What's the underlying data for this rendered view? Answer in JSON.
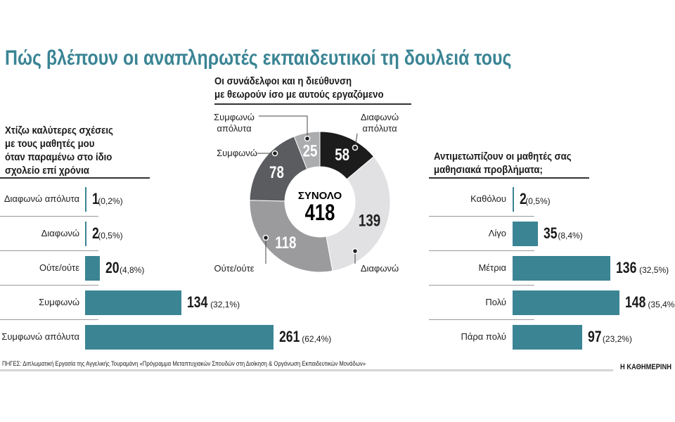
{
  "title": "Πώς βλέπουν οι αναπληρωτές εκπαιδευτικοί τη δουλειά τους",
  "colors": {
    "accent": "#3a8494",
    "bar": "#3a8494"
  },
  "chart_data": [
    {
      "type": "bar",
      "orientation": "horizontal",
      "title_lines": [
        "Χτίζω καλύτερες σχέσεις",
        "με τους μαθητές μου",
        "όταν παραμένω στο ίδιο",
        "σχολείο επί χρόνια"
      ],
      "categories": [
        "Διαφωνώ απόλυτα",
        "Διαφωνώ",
        "Ούτε/ούτε",
        "Συμφωνώ",
        "Συμφωνώ απόλυτα"
      ],
      "values": [
        1,
        2,
        20,
        134,
        261
      ],
      "percent_labels": [
        "(0,2%)",
        "(0,5%)",
        "(4,8%)",
        "(32,1%)",
        "(62,4%)"
      ]
    },
    {
      "type": "pie",
      "donut": true,
      "title_lines": [
        "Οι συνάδελφοι και η διεύθυνση",
        "με θεωρούν ίσο με αυτούς εργαζόμενο"
      ],
      "center_label": "ΣΥΝΟΛΟ",
      "total": 418,
      "slices": [
        {
          "label": "Διαφωνώ απόλυτα",
          "value": 58,
          "color": "#1c1c1c"
        },
        {
          "label": "Διαφωνώ",
          "value": 139,
          "color": "#e1e1e3"
        },
        {
          "label": "Ούτε/ούτε",
          "value": 118,
          "color": "#9b9b9e"
        },
        {
          "label": "Συμφωνώ",
          "value": 78,
          "color": "#5b5c5f"
        },
        {
          "label": "Συμφωνώ απόλυτα",
          "value": 25,
          "color": "#abacae"
        }
      ]
    },
    {
      "type": "bar",
      "orientation": "horizontal",
      "title_lines": [
        "Αντιμετωπίζουν οι μαθητές σας",
        "μαθησιακά προβλήματα;"
      ],
      "categories": [
        "Καθόλου",
        "Λίγο",
        "Μέτρια",
        "Πολύ",
        "Πάρα πολύ"
      ],
      "values": [
        2,
        35,
        136,
        148,
        97
      ],
      "percent_labels": [
        "(0,5%)",
        "(8,4%)",
        "(32,5%)",
        "(35,4%)",
        "(23,2%)"
      ]
    }
  ],
  "footer": {
    "source": "ΠΗΓΕΣ: Διπλωματική Εργασία της Αγγελικής Τουραμάνη «Πρόγραμμα Μεταπτυχιακών Σπουδών στη Διοίκηση & Οργάνωση Εκπαιδευτικών Μονάδων»",
    "brand": "Η ΚΑΘΗΜΕΡΙΝΗ"
  }
}
